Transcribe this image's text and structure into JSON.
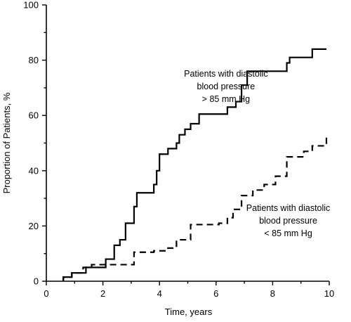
{
  "chart_data": {
    "type": "line",
    "xlabel": "Time, years",
    "ylabel": "Proportion of Patients, %",
    "xlim": [
      0,
      10
    ],
    "ylim": [
      0,
      100
    ],
    "xticks": [
      "0",
      "2",
      "4",
      "6",
      "8",
      "10"
    ],
    "yticks": [
      "0",
      "20",
      "40",
      "60",
      "80",
      "100"
    ],
    "grid": false,
    "legend": "none",
    "series": [
      {
        "name": "Patients with diastolic blood pressure > 85 mm Hg",
        "style": "solid",
        "step": true,
        "x": [
          0.6,
          0.9,
          1.4,
          2.1,
          2.4,
          2.6,
          2.8,
          3.1,
          3.2,
          3.8,
          3.9,
          4.0,
          4.3,
          4.6,
          4.7,
          4.9,
          5.1,
          5.4,
          6.4,
          6.7,
          6.9,
          7.1,
          7.3,
          8.5,
          8.6,
          9.4,
          9.9
        ],
        "y": [
          1.5,
          3,
          5,
          8,
          13,
          15,
          21,
          27,
          32,
          35,
          40,
          46,
          48,
          50,
          53,
          55,
          57,
          60.5,
          63,
          65,
          71,
          76,
          76,
          79,
          81,
          84,
          84
        ]
      },
      {
        "name": "Patients with diastolic blood pressure < 85 mm Hg",
        "style": "dashed",
        "step": true,
        "x": [
          0.6,
          0.9,
          1.3,
          1.6,
          2.4,
          3.1,
          3.8,
          4.3,
          4.6,
          5.1,
          5.6,
          6.1,
          6.4,
          6.6,
          6.9,
          7.3,
          7.7,
          8.1,
          8.5,
          9.1,
          9.4,
          9.9
        ],
        "y": [
          1.5,
          3,
          5,
          6,
          6,
          10.5,
          11,
          12,
          15,
          20.5,
          20.5,
          21,
          23,
          26,
          31,
          33,
          35,
          38,
          45,
          47,
          49,
          52
        ]
      }
    ],
    "annotations": [
      {
        "id": "high",
        "lines": [
          "Patients with diastolic",
          "blood pressure",
          "> 85 mm Hg"
        ],
        "anchor_year": 6.35,
        "anchor_pct": 74
      },
      {
        "id": "low",
        "lines": [
          "Patients with diastolic",
          "blood pressure",
          "< 85 mm Hg"
        ],
        "anchor_year": 8.55,
        "anchor_pct": 25.5
      }
    ]
  }
}
